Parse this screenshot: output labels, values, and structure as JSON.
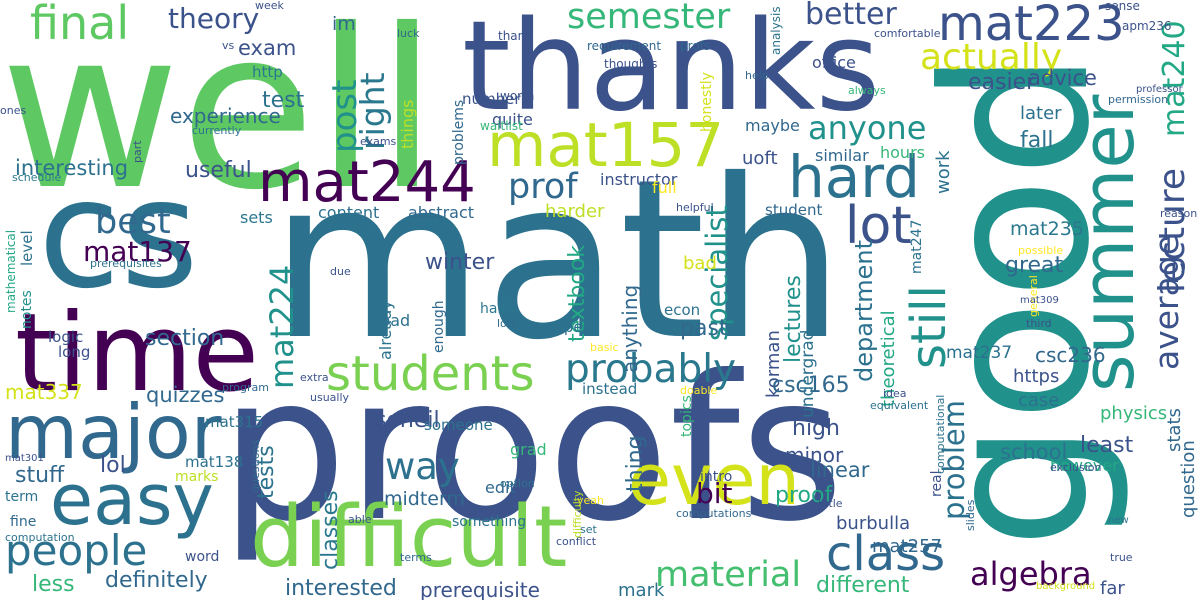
{
  "cloud": {
    "words": [
      {
        "text": "well",
        "color": "#5ec962"
      },
      {
        "text": "thanks",
        "color": "#3b528b"
      },
      {
        "text": "good",
        "color": "#21918c"
      },
      {
        "text": "cs",
        "color": "#2c728e"
      },
      {
        "text": "math",
        "color": "#2c728e"
      },
      {
        "text": "proofs",
        "color": "#3b528b"
      },
      {
        "text": "time",
        "color": "#440154"
      },
      {
        "text": "summer",
        "color": "#21918c"
      },
      {
        "text": "difficult",
        "color": "#7ad151"
      },
      {
        "text": "mat157",
        "color": "#bddf26"
      },
      {
        "text": "mat244",
        "color": "#440154"
      },
      {
        "text": "even",
        "color": "#d4e21a"
      },
      {
        "text": "major",
        "color": "#31688e"
      },
      {
        "text": "easy",
        "color": "#2c728e"
      },
      {
        "text": "hard",
        "color": "#2c728e"
      },
      {
        "text": "students",
        "color": "#7ad151"
      },
      {
        "text": "mat223",
        "color": "#3b528b"
      },
      {
        "text": "people",
        "color": "#2c728e"
      },
      {
        "text": "final",
        "color": "#5ec962"
      },
      {
        "text": "class",
        "color": "#31688e"
      },
      {
        "text": "lot",
        "color": "#3b528b"
      },
      {
        "text": "mat224",
        "color": "#21918c"
      },
      {
        "text": "probably",
        "color": "#2a788e"
      },
      {
        "text": "material",
        "color": "#44bf70"
      },
      {
        "text": "lecture",
        "color": "#3b528b"
      },
      {
        "text": "still",
        "color": "#21918c"
      },
      {
        "text": "semester",
        "color": "#35b779"
      },
      {
        "text": "anyone",
        "color": "#21918c"
      },
      {
        "text": "actually",
        "color": "#d4e21a"
      },
      {
        "text": "way",
        "color": "#2c728e"
      },
      {
        "text": "best",
        "color": "#31688e"
      },
      {
        "text": "prof",
        "color": "#31688e"
      },
      {
        "text": "right",
        "color": "#2a788e"
      },
      {
        "text": "post",
        "color": "#21918c"
      },
      {
        "text": "better",
        "color": "#3b528b"
      },
      {
        "text": "mat240",
        "color": "#22a884"
      },
      {
        "text": "average",
        "color": "#3b528b"
      },
      {
        "text": "algebra",
        "color": "#440154"
      },
      {
        "text": "specialist",
        "color": "#21918c"
      },
      {
        "text": "problem",
        "color": "#2c728e"
      },
      {
        "text": "mat137",
        "color": "#440154"
      },
      {
        "text": "theory",
        "color": "#3b528b"
      },
      {
        "text": "department",
        "color": "#2c728e"
      },
      {
        "text": "bit",
        "color": "#440154"
      },
      {
        "text": "advice",
        "color": "#3b528b"
      },
      {
        "text": "easier",
        "color": "#3b528b"
      },
      {
        "text": "experience",
        "color": "#31688e"
      },
      {
        "text": "exam",
        "color": "#3b528b"
      },
      {
        "text": "test",
        "color": "#2c728e"
      },
      {
        "text": "fall",
        "color": "#2c728e"
      },
      {
        "text": "useful",
        "color": "#3b528b"
      },
      {
        "text": "interesting",
        "color": "#2c728e"
      },
      {
        "text": "section",
        "color": "#31688e"
      },
      {
        "text": "winter",
        "color": "#3b528b"
      },
      {
        "text": "mat337",
        "color": "#d4e21a"
      },
      {
        "text": "quizzes",
        "color": "#31688e"
      },
      {
        "text": "stuff",
        "color": "#31688e"
      },
      {
        "text": "lol",
        "color": "#3b528b"
      },
      {
        "text": "soheil",
        "color": "#3b528b"
      },
      {
        "text": "tests",
        "color": "#2c728e"
      },
      {
        "text": "midterm",
        "color": "#31688e"
      },
      {
        "text": "classes",
        "color": "#2a788e"
      },
      {
        "text": "korman",
        "color": "#3b528b"
      },
      {
        "text": "lectures",
        "color": "#21918c"
      },
      {
        "text": "past",
        "color": "#31688e"
      },
      {
        "text": "anything",
        "color": "#31688e"
      },
      {
        "text": "textbook",
        "color": "#22a884"
      },
      {
        "text": "great",
        "color": "#31688e"
      },
      {
        "text": "mat235",
        "color": "#2a788e"
      },
      {
        "text": "mat237",
        "color": "#2c728e"
      },
      {
        "text": "csc236",
        "color": "#31688e"
      },
      {
        "text": "csc165",
        "color": "#31688e"
      },
      {
        "text": "school",
        "color": "#2c728e"
      },
      {
        "text": "least",
        "color": "#3b528b"
      },
      {
        "text": "high",
        "color": "#3b528b"
      },
      {
        "text": "minor",
        "color": "#3b528b"
      },
      {
        "text": "linear",
        "color": "#31688e"
      },
      {
        "text": "proof",
        "color": "#22a884"
      },
      {
        "text": "thing",
        "color": "#31688e"
      },
      {
        "text": "different",
        "color": "#35b779"
      },
      {
        "text": "definitely",
        "color": "#31688e"
      },
      {
        "text": "interested",
        "color": "#31688e"
      },
      {
        "text": "prerequisite",
        "color": "#3b528b"
      },
      {
        "text": "less",
        "color": "#35b779"
      },
      {
        "text": "mark",
        "color": "#2c728e"
      },
      {
        "text": "burbulla",
        "color": "#3b528b"
      },
      {
        "text": "mat257",
        "color": "#31688e"
      },
      {
        "text": "far",
        "color": "#3b528b"
      },
      {
        "text": "https",
        "color": "#3b528b"
      },
      {
        "text": "case",
        "color": "#2c728e"
      },
      {
        "text": "physics",
        "color": "#35b779"
      },
      {
        "text": "stats",
        "color": "#31688e"
      },
      {
        "text": "question",
        "color": "#31688e"
      },
      {
        "text": "however",
        "color": "#22a884"
      },
      {
        "text": "theoretical",
        "color": "#22a884"
      },
      {
        "text": "undergrad",
        "color": "#2c728e"
      },
      {
        "text": "work",
        "color": "#2c728e"
      },
      {
        "text": "later",
        "color": "#2c728e"
      },
      {
        "text": "maybe",
        "color": "#31688e"
      },
      {
        "text": "uoft",
        "color": "#3b528b"
      },
      {
        "text": "similar",
        "color": "#31688e"
      },
      {
        "text": "hours",
        "color": "#35b779"
      },
      {
        "text": "instructor",
        "color": "#3b528b"
      },
      {
        "text": "full",
        "color": "#fde725"
      },
      {
        "text": "harder",
        "color": "#bddf26"
      },
      {
        "text": "bad",
        "color": "#d4e21a"
      },
      {
        "text": "student",
        "color": "#31688e"
      },
      {
        "text": "abstract",
        "color": "#31688e"
      },
      {
        "text": "content",
        "color": "#2c728e"
      },
      {
        "text": "sets",
        "color": "#2a788e"
      },
      {
        "text": "im",
        "color": "#31688e"
      },
      {
        "text": "number",
        "color": "#3b528b"
      },
      {
        "text": "things",
        "color": "#bddf26"
      },
      {
        "text": "problems",
        "color": "#31688e"
      },
      {
        "text": "quite",
        "color": "#3b528b"
      },
      {
        "text": "honestly",
        "color": "#d4e21a"
      },
      {
        "text": "office",
        "color": "#3b528b"
      },
      {
        "text": "mat315",
        "color": "#2c728e"
      },
      {
        "text": "mat138",
        "color": "#2c728e"
      },
      {
        "text": "http",
        "color": "#2a788e"
      },
      {
        "text": "level",
        "color": "#2c728e"
      },
      {
        "text": "notes",
        "color": "#21918c"
      },
      {
        "text": "logic",
        "color": "#3b528b"
      },
      {
        "text": "long",
        "color": "#3b528b"
      },
      {
        "text": "mathematical",
        "color": "#22a884"
      },
      {
        "text": "load",
        "color": "#2c728e"
      },
      {
        "text": "already",
        "color": "#2c728e"
      },
      {
        "text": "enough",
        "color": "#31688e"
      },
      {
        "text": "half",
        "color": "#2a788e"
      },
      {
        "text": "econ",
        "color": "#2c728e"
      },
      {
        "text": "spec",
        "color": "#2c728e"
      },
      {
        "text": "grad",
        "color": "#35b779"
      },
      {
        "text": "someone",
        "color": "#2c728e"
      },
      {
        "text": "edit",
        "color": "#31688e"
      },
      {
        "text": "instead",
        "color": "#2c728e"
      },
      {
        "text": "topics",
        "color": "#35b779"
      },
      {
        "text": "intro",
        "color": "#3b528b"
      },
      {
        "text": "marks",
        "color": "#bddf26"
      },
      {
        "text": "term",
        "color": "#2c728e"
      },
      {
        "text": "fine",
        "color": "#31688e"
      },
      {
        "text": "word",
        "color": "#3b528b"
      },
      {
        "text": "something",
        "color": "#2c728e"
      },
      {
        "text": "mat247",
        "color": "#2c728e"
      },
      {
        "text": "real",
        "color": "#3b528b"
      },
      {
        "text": "sense",
        "color": "#3b528b"
      },
      {
        "text": "apm236",
        "color": "#3b528b"
      },
      {
        "text": "analysis",
        "color": "#2c728e"
      },
      {
        "text": "waitlist",
        "color": "#35b779"
      },
      {
        "text": "thoughts",
        "color": "#3b528b"
      },
      {
        "text": "requirement",
        "color": "#31688e"
      },
      {
        "text": "profs",
        "color": "#31688e"
      },
      {
        "text": "worth",
        "color": "#3b528b"
      },
      {
        "text": "comfortable",
        "color": "#3b528b"
      },
      {
        "text": "week",
        "color": "#3b528b"
      },
      {
        "text": "luck",
        "color": "#31688e"
      },
      {
        "text": "thank",
        "color": "#3b528b"
      },
      {
        "text": "ones",
        "color": "#3b528b"
      },
      {
        "text": "vs",
        "color": "#3b528b"
      },
      {
        "text": "currently",
        "color": "#2c728e"
      },
      {
        "text": "part",
        "color": "#3b528b"
      },
      {
        "text": "exams",
        "color": "#3b528b"
      },
      {
        "text": "schedule",
        "color": "#2a788e"
      },
      {
        "text": "prerequisites",
        "color": "#2c728e"
      },
      {
        "text": "professor",
        "color": "#3b528b"
      },
      {
        "text": "help",
        "color": "#31688e"
      },
      {
        "text": "always",
        "color": "#35b779"
      },
      {
        "text": "permission",
        "color": "#31688e"
      },
      {
        "text": "helpful",
        "color": "#3b528b"
      },
      {
        "text": "reason",
        "color": "#3b528b"
      },
      {
        "text": "possible",
        "color": "#fde725"
      },
      {
        "text": "general",
        "color": "#fde725"
      },
      {
        "text": "mat309",
        "color": "#3b528b"
      },
      {
        "text": "third",
        "color": "#3b528b"
      },
      {
        "text": "idea",
        "color": "#3b528b"
      },
      {
        "text": "equivalent",
        "color": "#2c728e"
      },
      {
        "text": "computational",
        "color": "#2c728e"
      },
      {
        "text": "exclusion",
        "color": "#3b528b"
      },
      {
        "text": "slides",
        "color": "#31688e"
      },
      {
        "text": "new",
        "color": "#2c728e"
      },
      {
        "text": "true",
        "color": "#3b528b"
      },
      {
        "text": "background",
        "color": "#d4e21a"
      },
      {
        "text": "computations",
        "color": "#31688e"
      },
      {
        "text": "little",
        "color": "#3b528b"
      },
      {
        "text": "set",
        "color": "#2c728e"
      },
      {
        "text": "terms",
        "color": "#31688e"
      },
      {
        "text": "conflict",
        "color": "#3b528b"
      },
      {
        "text": "yeah",
        "color": "#fde725"
      },
      {
        "text": "difficulty",
        "color": "#bddf26"
      },
      {
        "text": "option",
        "color": "#2c728e"
      },
      {
        "text": "able",
        "color": "#3b528b"
      },
      {
        "text": "mat301",
        "color": "#3b528b"
      },
      {
        "text": "computation",
        "color": "#2c728e"
      },
      {
        "text": "questions",
        "color": "#31688e"
      },
      {
        "text": "usually",
        "color": "#3b528b"
      },
      {
        "text": "program",
        "color": "#31688e"
      },
      {
        "text": "extra",
        "color": "#3b528b"
      },
      {
        "text": "due",
        "color": "#3b528b"
      },
      {
        "text": "basic",
        "color": "#fde725"
      },
      {
        "text": "lots",
        "color": "#31688e"
      },
      {
        "text": "doable",
        "color": "#fde725"
      }
    ]
  }
}
